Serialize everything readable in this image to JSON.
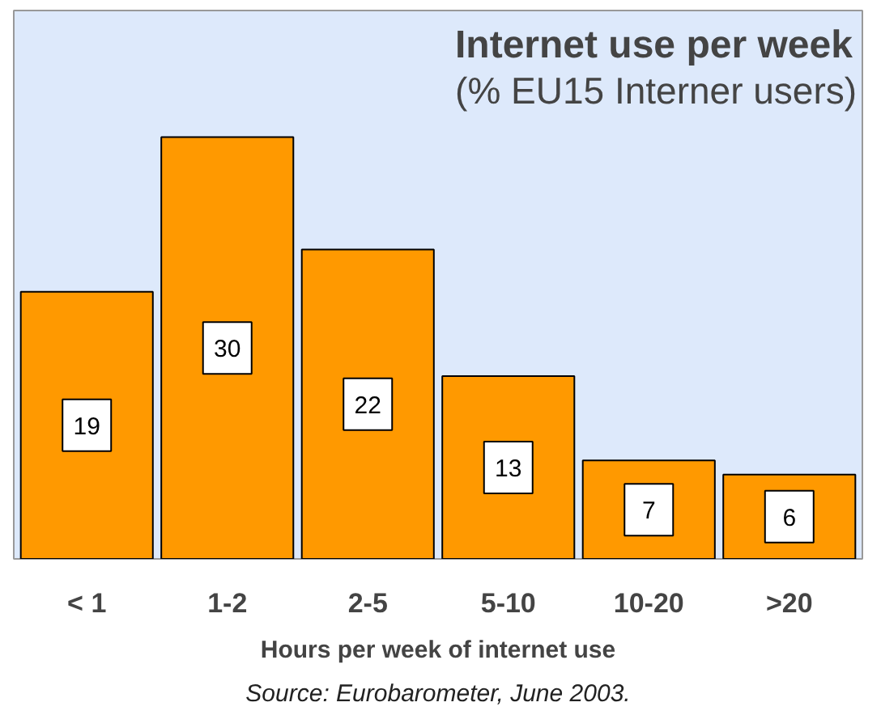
{
  "chart_data": {
    "type": "bar",
    "title": "Internet use per week",
    "subtitle": "(% EU15 Interner users)",
    "xlabel": "Hours per week of internet use",
    "categories": [
      "< 1",
      "1-2",
      "2-5",
      "5-10",
      "10-20",
      ">20"
    ],
    "values": [
      19,
      30,
      22,
      13,
      7,
      6
    ],
    "color": "#ff9900",
    "data_labels": true,
    "annotations": [
      "Source: Eurobarometer, June 2003."
    ]
  }
}
